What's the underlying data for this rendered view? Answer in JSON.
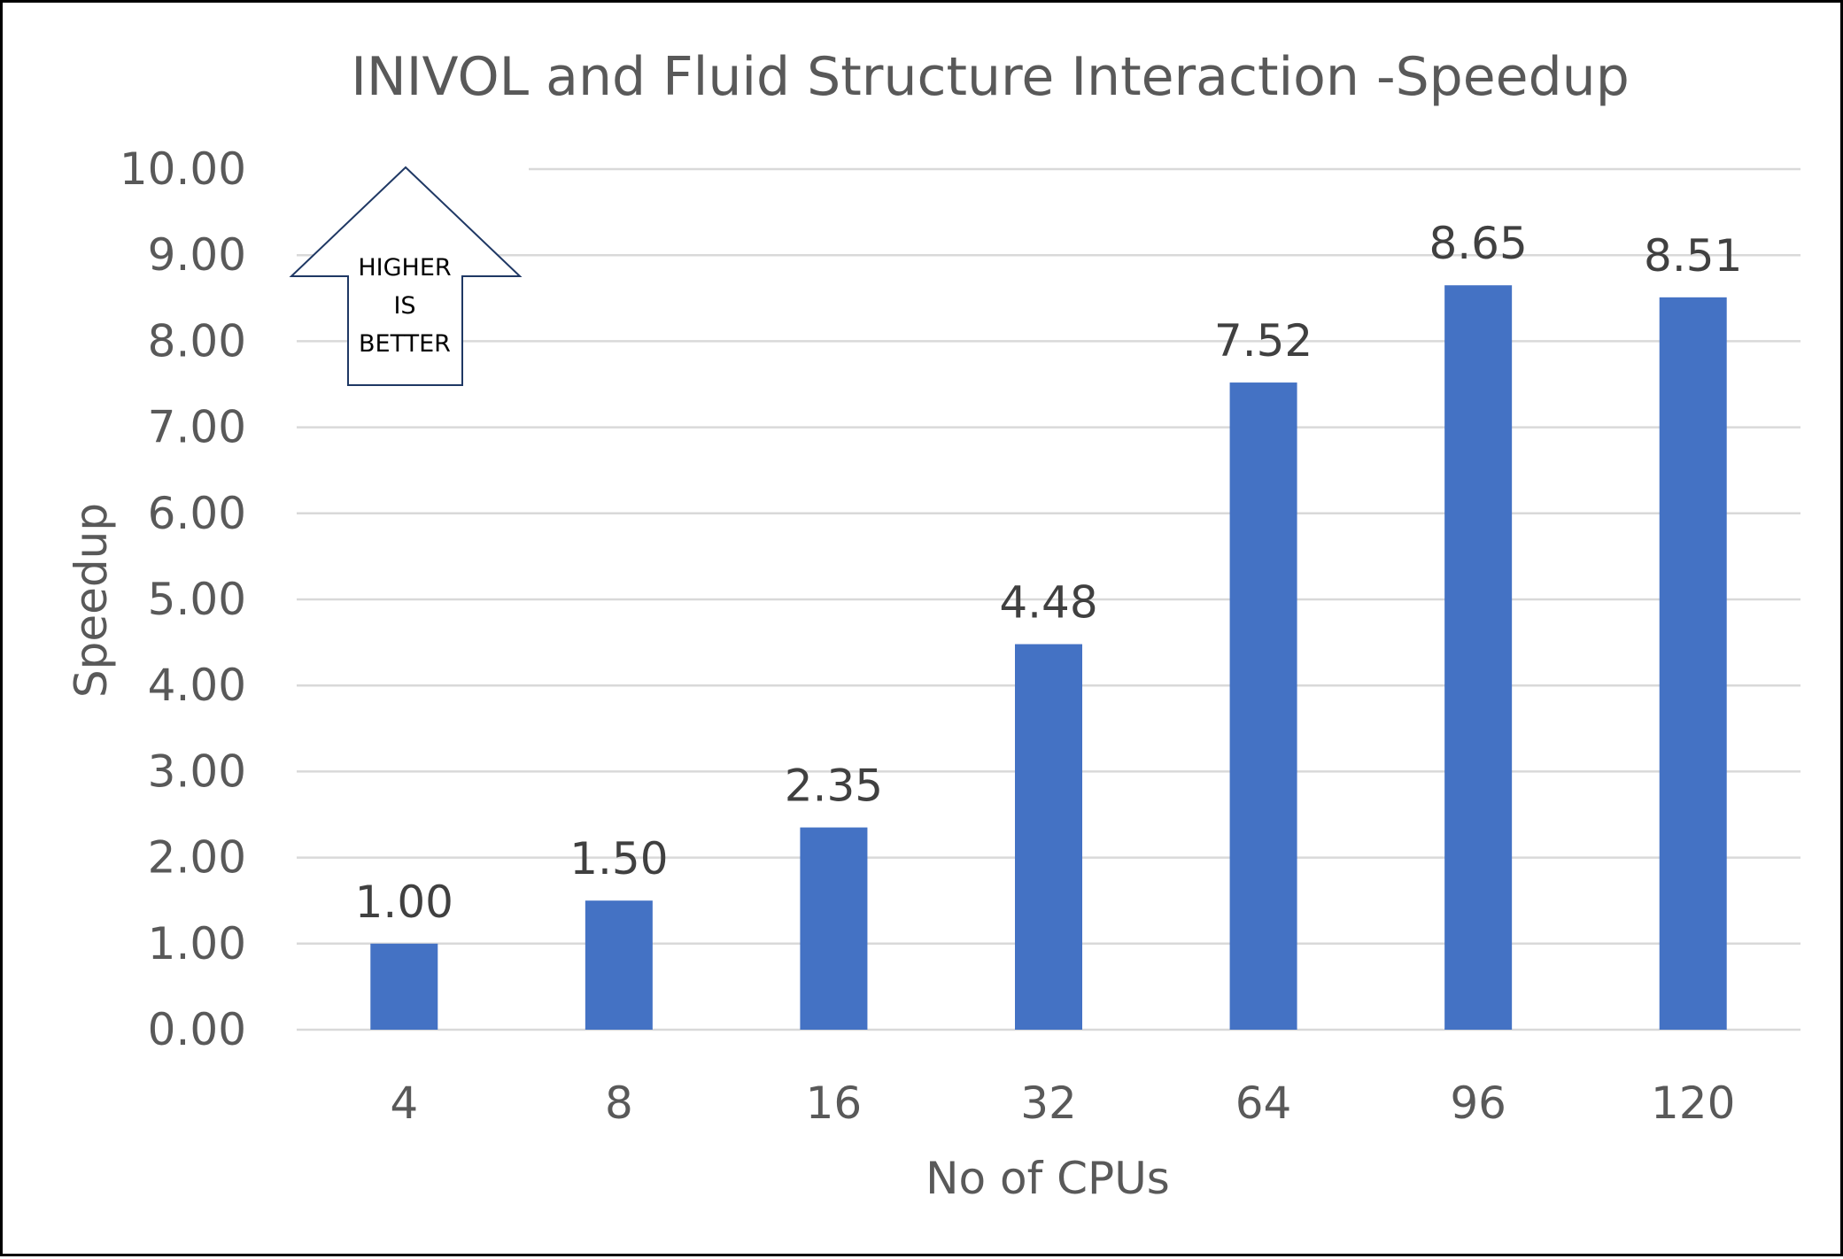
{
  "chart_data": {
    "type": "bar",
    "title": "INIVOL and Fluid Structure Interaction -Speedup",
    "xlabel": "No of CPUs",
    "ylabel": "Speedup",
    "categories": [
      "4",
      "8",
      "16",
      "32",
      "64",
      "96",
      "120"
    ],
    "values": [
      1.0,
      1.5,
      2.35,
      4.48,
      7.52,
      8.65,
      8.51
    ],
    "data_labels": [
      "1.00",
      "1.50",
      "2.35",
      "4.48",
      "7.52",
      "8.65",
      "8.51"
    ],
    "y_ticks": [
      "0.00",
      "1.00",
      "2.00",
      "3.00",
      "4.00",
      "5.00",
      "6.00",
      "7.00",
      "8.00",
      "9.00",
      "10.00"
    ],
    "ylim": [
      0,
      10
    ],
    "grid": true,
    "legend": "none",
    "bar_color": "#4472C4",
    "gridline_color": "#D9D9D9",
    "callout": {
      "shape": "up-arrow",
      "lines": [
        "HIGHER",
        "IS",
        "BETTER"
      ],
      "outline_color": "#1F3864"
    }
  }
}
